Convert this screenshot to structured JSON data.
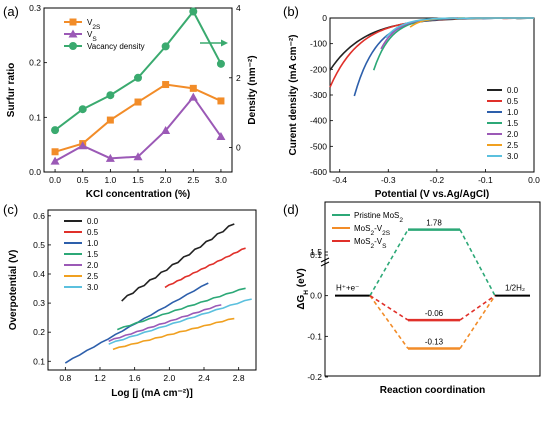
{
  "chart_data": [
    {
      "panel": "(a)",
      "type": "line",
      "xlabel": "KCl concentration (%)",
      "ylabel": "Surfur ratio",
      "ylabel_right": "Density (nm⁻²)",
      "x": [
        0.0,
        0.5,
        1.0,
        1.5,
        2.0,
        2.5,
        3.0
      ],
      "xticks": [
        "0.0",
        "0.5",
        "1.0",
        "1.5",
        "2.0",
        "2.5",
        "3.0"
      ],
      "yticks": [
        "0.0",
        "0.1",
        "0.2",
        "0.3"
      ],
      "yticks_right": [
        "0",
        "2",
        "4"
      ],
      "xlim": [
        -0.2,
        3.2
      ],
      "ylim": [
        0.0,
        0.3
      ],
      "ylim_right": [
        -0.7,
        4.0
      ],
      "series": [
        {
          "name": "V2S",
          "label_main": "V",
          "label_sub": "2S",
          "color": "#f28c28",
          "marker": "square",
          "axis": "left",
          "values": [
            0.037,
            0.052,
            0.095,
            0.128,
            0.16,
            0.153,
            0.13
          ]
        },
        {
          "name": "VS",
          "label_main": "V",
          "label_sub": "S",
          "color": "#9b59b6",
          "marker": "triangle",
          "axis": "left",
          "values": [
            0.02,
            0.048,
            0.025,
            0.028,
            0.076,
            0.137,
            0.065
          ]
        },
        {
          "name": "Vacancy density",
          "label_main": "Vacancy density",
          "label_sub": "",
          "color": "#3aaa6f",
          "marker": "circle",
          "axis": "right",
          "values": [
            0.5,
            1.1,
            1.5,
            2.0,
            2.9,
            3.9,
            2.4
          ]
        }
      ],
      "legend": "top-left"
    },
    {
      "panel": "(b)",
      "type": "line",
      "xlabel": "Potential (V vs.Ag/AgCl)",
      "ylabel": "Curent density (mA cm⁻²)",
      "xticks": [
        "-0.4",
        "-0.3",
        "-0.2",
        "-0.1",
        "0.0"
      ],
      "yticks": [
        "0",
        "-100",
        "-200",
        "-300",
        "-400",
        "-500",
        "-600"
      ],
      "xlim": [
        -0.42,
        0.0
      ],
      "ylim": [
        -600,
        0
      ],
      "series": [
        {
          "name": "0.0",
          "color": "#222222",
          "onset": -0.04,
          "k": 14,
          "start": -0.42
        },
        {
          "name": "0.5",
          "color": "#e0302a",
          "onset": -0.07,
          "k": 16,
          "start": -0.42
        },
        {
          "name": "1.0",
          "color": "#2d5fab",
          "onset": -0.11,
          "k": 22,
          "start": -0.37
        },
        {
          "name": "1.5",
          "color": "#2ca877",
          "onset": -0.14,
          "k": 28,
          "start": -0.33
        },
        {
          "name": "2.0",
          "color": "#9b59b6",
          "onset": -0.155,
          "k": 30,
          "start": -0.315
        },
        {
          "name": "2.5",
          "color": "#f0a020",
          "onset": -0.165,
          "k": 40,
          "start": -0.255
        },
        {
          "name": "3.0",
          "color": "#5bc0de",
          "onset": -0.16,
          "k": 30,
          "start": -0.305
        }
      ],
      "legend": "right"
    },
    {
      "panel": "(c)",
      "type": "line",
      "xlabel": "Log [j (mA cm⁻²)]",
      "ylabel": "Overpotential (V)",
      "xticks": [
        "0.8",
        "1.2",
        "1.6",
        "2.0",
        "2.4",
        "2.8"
      ],
      "yticks": [
        "0.1",
        "0.2",
        "0.3",
        "0.4",
        "0.5",
        "0.6"
      ],
      "xlim": [
        0.6,
        3.0
      ],
      "ylim": [
        0.07,
        0.62
      ],
      "series": [
        {
          "name": "0.0",
          "color": "#222222",
          "x": [
            1.45,
            2.75
          ],
          "y": [
            0.31,
            0.575
          ]
        },
        {
          "name": "0.5",
          "color": "#e0302a",
          "x": [
            1.95,
            2.88
          ],
          "y": [
            0.355,
            0.49
          ]
        },
        {
          "name": "1.0",
          "color": "#2d5fab",
          "x": [
            0.8,
            2.45
          ],
          "y": [
            0.095,
            0.37
          ]
        },
        {
          "name": "1.5",
          "color": "#2ca877",
          "x": [
            1.4,
            2.88
          ],
          "y": [
            0.21,
            0.352
          ]
        },
        {
          "name": "2.0",
          "color": "#9b59b6",
          "x": [
            1.3,
            2.6
          ],
          "y": [
            0.17,
            0.295
          ]
        },
        {
          "name": "2.5",
          "color": "#f0a020",
          "x": [
            1.35,
            2.75
          ],
          "y": [
            0.142,
            0.248
          ]
        },
        {
          "name": "3.0",
          "color": "#5bc0de",
          "x": [
            1.3,
            2.95
          ],
          "y": [
            0.16,
            0.315
          ]
        }
      ],
      "legend": "top-left"
    },
    {
      "panel": "(d)",
      "type": "line",
      "xlabel": "Reaction coordination",
      "ylabel": "ΔG",
      "ylabel_sub": "H",
      "ylabel_unit": "(eV)",
      "yticks": [
        "1.5",
        "0.1",
        "0.0",
        "-0.1",
        "-0.2"
      ],
      "states": [
        "H⁺+e⁻",
        "1/2H₂"
      ],
      "series": [
        {
          "name": "Pristine MoS2",
          "label_main": "Pristine MoS",
          "label_sub": "2",
          "color": "#2ca877",
          "value": 1.78,
          "value_label": "1.78"
        },
        {
          "name": "MoS2-V2S",
          "label_main": "MoS",
          "label_sub": "2",
          "label_tail": "-V",
          "label_tail_sub": "2S",
          "color": "#f28c28",
          "value": -0.13,
          "value_label": "-0.13"
        },
        {
          "name": "MoS2-VS",
          "label_main": "MoS",
          "label_sub": "2",
          "label_tail": "-V",
          "label_tail_sub": "S",
          "color": "#e0302a",
          "value": -0.06,
          "value_label": "-0.06"
        }
      ],
      "legend": "top-left"
    }
  ]
}
